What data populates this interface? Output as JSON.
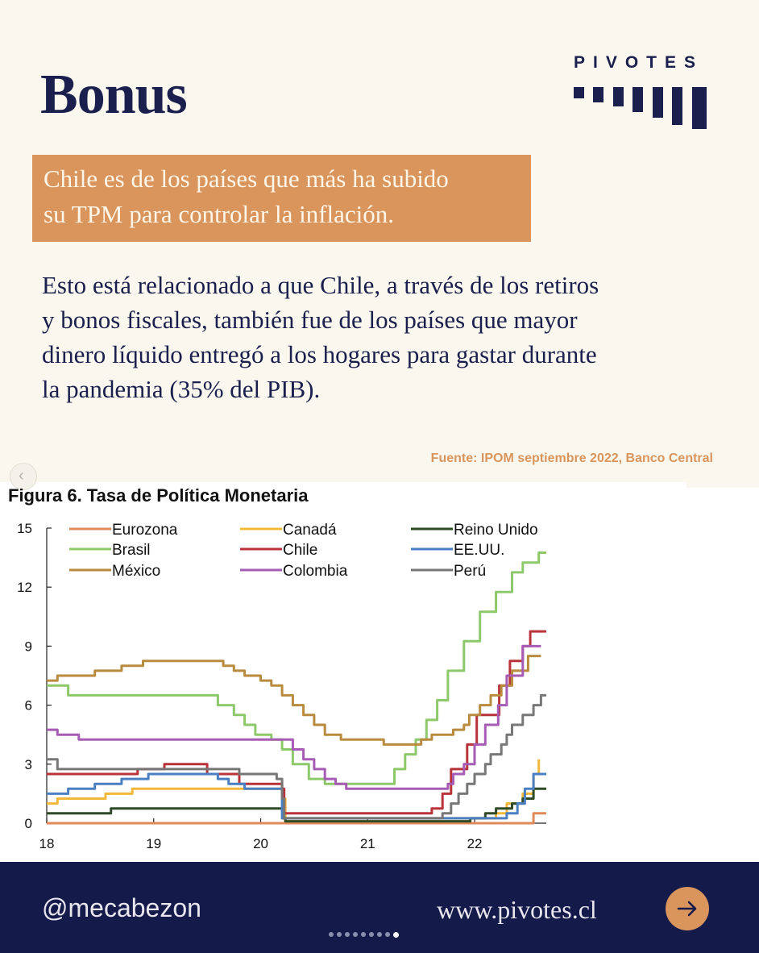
{
  "header": {
    "title": "Bonus",
    "brand": "PIVOTES"
  },
  "callout": {
    "line1": "Chile es de los países que más ha subido",
    "line2": "su TPM  para controlar la inflación."
  },
  "body": {
    "line1": "Esto está relacionado a que Chile, a través de los retiros",
    "line2": "y bonos fiscales, también fue de los países que mayor",
    "line3": "dinero líquido entregó a los hogares para gastar durante",
    "line4": "la pandemia (35% del PIB)."
  },
  "source": "Fuente: IPOM septiembre 2022, Banco Central",
  "figure_title": "Figura 6. Tasa de Política Monetaria",
  "footer": {
    "handle": "@mecabezon",
    "site": "www.pivotes.cl"
  },
  "carousel": {
    "total": 9,
    "active": 9
  },
  "colors": {
    "navy": "#1a1f4d",
    "accent": "#d9955c",
    "background": "#faf7ee"
  },
  "icons": {
    "prev": "chevron-left-icon",
    "next": "arrow-right-icon"
  },
  "chart_data": {
    "type": "line",
    "step": true,
    "title": "Figura 6. Tasa de Política Monetaria",
    "xlim": [
      2018,
      2022.67
    ],
    "ylim": [
      0,
      15
    ],
    "xticks": [
      {
        "v": 2018,
        "label": "18"
      },
      {
        "v": 2019,
        "label": "19"
      },
      {
        "v": 2020,
        "label": "20"
      },
      {
        "v": 2021,
        "label": "21"
      },
      {
        "v": 2022,
        "label": "22"
      }
    ],
    "yticks": [
      0,
      3,
      6,
      9,
      12,
      15
    ],
    "legend": "top, 3 columns",
    "series": [
      {
        "name": "Eurozona",
        "color": "#e08a5a",
        "points": [
          [
            2018,
            0
          ],
          [
            2022.55,
            0
          ],
          [
            2022.55,
            0.5
          ],
          [
            2022.67,
            0.5
          ]
        ]
      },
      {
        "name": "Canadá",
        "color": "#f2b83a",
        "points": [
          [
            2018,
            1
          ],
          [
            2018.1,
            1.25
          ],
          [
            2018.55,
            1.5
          ],
          [
            2018.8,
            1.75
          ],
          [
            2020.2,
            1.75
          ],
          [
            2020.21,
            1.25
          ],
          [
            2020.23,
            0.25
          ],
          [
            2022.15,
            0.25
          ],
          [
            2022.2,
            0.5
          ],
          [
            2022.3,
            1
          ],
          [
            2022.45,
            1.5
          ],
          [
            2022.55,
            2.5
          ],
          [
            2022.6,
            3.25
          ]
        ]
      },
      {
        "name": "Reino Unido",
        "color": "#2e4a26",
        "points": [
          [
            2018,
            0.5
          ],
          [
            2018.6,
            0.75
          ],
          [
            2020.2,
            0.75
          ],
          [
            2020.21,
            0.25
          ],
          [
            2020.23,
            0.1
          ],
          [
            2021.95,
            0.1
          ],
          [
            2021.96,
            0.25
          ],
          [
            2022.1,
            0.5
          ],
          [
            2022.2,
            0.75
          ],
          [
            2022.35,
            1
          ],
          [
            2022.45,
            1.25
          ],
          [
            2022.55,
            1.75
          ],
          [
            2022.67,
            1.75
          ]
        ]
      },
      {
        "name": "Brasil",
        "color": "#8dc96a",
        "points": [
          [
            2018,
            7
          ],
          [
            2018.2,
            6.5
          ],
          [
            2018.8,
            6.5
          ],
          [
            2019.5,
            6.5
          ],
          [
            2019.6,
            6
          ],
          [
            2019.75,
            5.5
          ],
          [
            2019.85,
            5
          ],
          [
            2019.95,
            4.5
          ],
          [
            2020.1,
            4.25
          ],
          [
            2020.2,
            3.75
          ],
          [
            2020.3,
            3
          ],
          [
            2020.45,
            2.25
          ],
          [
            2020.6,
            2
          ],
          [
            2021.2,
            2
          ],
          [
            2021.25,
            2.75
          ],
          [
            2021.35,
            3.5
          ],
          [
            2021.45,
            4.25
          ],
          [
            2021.55,
            5.25
          ],
          [
            2021.65,
            6.25
          ],
          [
            2021.75,
            7.75
          ],
          [
            2021.9,
            9.25
          ],
          [
            2022.05,
            10.75
          ],
          [
            2022.2,
            11.75
          ],
          [
            2022.35,
            12.75
          ],
          [
            2022.45,
            13.25
          ],
          [
            2022.6,
            13.75
          ],
          [
            2022.67,
            13.75
          ]
        ]
      },
      {
        "name": "Chile",
        "color": "#b8333a",
        "points": [
          [
            2018,
            2.5
          ],
          [
            2018.8,
            2.5
          ],
          [
            2018.85,
            2.75
          ],
          [
            2019.1,
            3
          ],
          [
            2019.45,
            3
          ],
          [
            2019.5,
            2.5
          ],
          [
            2019.8,
            2
          ],
          [
            2020.2,
            1.75
          ],
          [
            2020.22,
            0.5
          ],
          [
            2021.55,
            0.5
          ],
          [
            2021.6,
            0.75
          ],
          [
            2021.7,
            1.5
          ],
          [
            2021.78,
            2.75
          ],
          [
            2021.93,
            4
          ],
          [
            2022.02,
            5.5
          ],
          [
            2022.23,
            7
          ],
          [
            2022.33,
            8.25
          ],
          [
            2022.45,
            9
          ],
          [
            2022.52,
            9.75
          ],
          [
            2022.67,
            9.75
          ]
        ]
      },
      {
        "name": "EE.UU.",
        "color": "#4a7fc1",
        "points": [
          [
            2018,
            1.5
          ],
          [
            2018.2,
            1.75
          ],
          [
            2018.45,
            2
          ],
          [
            2018.7,
            2.25
          ],
          [
            2018.95,
            2.5
          ],
          [
            2019.55,
            2.5
          ],
          [
            2019.6,
            2.25
          ],
          [
            2019.7,
            2
          ],
          [
            2019.85,
            1.75
          ],
          [
            2020.17,
            1.75
          ],
          [
            2020.2,
            0.25
          ],
          [
            2022.2,
            0.25
          ],
          [
            2022.3,
            0.5
          ],
          [
            2022.4,
            1
          ],
          [
            2022.47,
            1.75
          ],
          [
            2022.55,
            2.5
          ],
          [
            2022.67,
            2.5
          ]
        ]
      },
      {
        "name": "México",
        "color": "#b88b3e",
        "points": [
          [
            2018,
            7.25
          ],
          [
            2018.1,
            7.5
          ],
          [
            2018.45,
            7.75
          ],
          [
            2018.7,
            8
          ],
          [
            2018.9,
            8.25
          ],
          [
            2019.6,
            8.25
          ],
          [
            2019.65,
            8
          ],
          [
            2019.75,
            7.75
          ],
          [
            2019.85,
            7.5
          ],
          [
            2020.0,
            7.25
          ],
          [
            2020.1,
            7
          ],
          [
            2020.2,
            6.5
          ],
          [
            2020.3,
            6
          ],
          [
            2020.4,
            5.5
          ],
          [
            2020.5,
            5
          ],
          [
            2020.6,
            4.5
          ],
          [
            2020.75,
            4.25
          ],
          [
            2021.1,
            4.25
          ],
          [
            2021.15,
            4
          ],
          [
            2021.45,
            4
          ],
          [
            2021.5,
            4.25
          ],
          [
            2021.6,
            4.5
          ],
          [
            2021.8,
            4.75
          ],
          [
            2021.9,
            5
          ],
          [
            2021.95,
            5.5
          ],
          [
            2022.05,
            6
          ],
          [
            2022.15,
            6.5
          ],
          [
            2022.25,
            7
          ],
          [
            2022.35,
            7.75
          ],
          [
            2022.5,
            8.5
          ],
          [
            2022.62,
            8.5
          ]
        ]
      },
      {
        "name": "Colombia",
        "color": "#a65bb4",
        "points": [
          [
            2018,
            4.75
          ],
          [
            2018.1,
            4.5
          ],
          [
            2018.3,
            4.25
          ],
          [
            2020.25,
            4.25
          ],
          [
            2020.3,
            3.75
          ],
          [
            2020.4,
            3.25
          ],
          [
            2020.5,
            2.75
          ],
          [
            2020.6,
            2.25
          ],
          [
            2020.7,
            2
          ],
          [
            2020.8,
            1.75
          ],
          [
            2021.7,
            1.75
          ],
          [
            2021.75,
            2
          ],
          [
            2021.8,
            2.5
          ],
          [
            2021.9,
            3
          ],
          [
            2022.0,
            4
          ],
          [
            2022.1,
            5
          ],
          [
            2022.22,
            6
          ],
          [
            2022.3,
            7.5
          ],
          [
            2022.45,
            9
          ],
          [
            2022.55,
            9
          ],
          [
            2022.62,
            9
          ]
        ]
      },
      {
        "name": "Perú",
        "color": "#777777",
        "points": [
          [
            2018,
            3.25
          ],
          [
            2018.1,
            2.75
          ],
          [
            2019.7,
            2.75
          ],
          [
            2019.8,
            2.5
          ],
          [
            2020.15,
            2.25
          ],
          [
            2020.2,
            1.25
          ],
          [
            2020.22,
            0.25
          ],
          [
            2021.6,
            0.25
          ],
          [
            2021.7,
            0.5
          ],
          [
            2021.78,
            1
          ],
          [
            2021.85,
            1.5
          ],
          [
            2021.93,
            2
          ],
          [
            2022.0,
            2.5
          ],
          [
            2022.1,
            3
          ],
          [
            2022.15,
            3.5
          ],
          [
            2022.25,
            4
          ],
          [
            2022.3,
            4.5
          ],
          [
            2022.35,
            5
          ],
          [
            2022.45,
            5.5
          ],
          [
            2022.55,
            6
          ],
          [
            2022.62,
            6.5
          ],
          [
            2022.67,
            6.5
          ]
        ]
      }
    ]
  }
}
